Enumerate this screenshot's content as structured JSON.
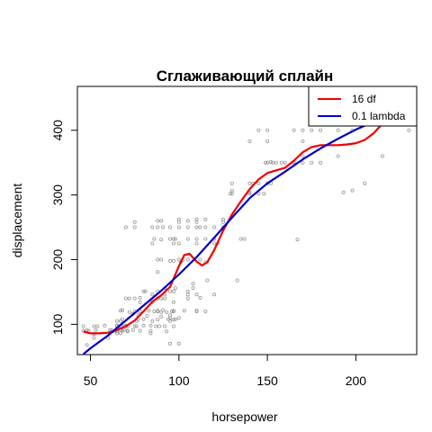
{
  "chart_data": {
    "type": "scatter",
    "title": "Сглаживающий сплайн",
    "xlabel": "horsepower",
    "ylabel": "displacement",
    "xlim": [
      42.6,
      234.4
    ],
    "ylim": [
      53.2,
      467.8
    ],
    "xticks": [
      50,
      100,
      150,
      200
    ],
    "yticks": [
      100,
      200,
      300,
      400
    ],
    "grid": false,
    "legend": {
      "position": "top-right",
      "entries": [
        {
          "label": "16 df",
          "color": "#ee0000"
        },
        {
          "label": "0.1 lambda",
          "color": "#0000cc"
        }
      ]
    },
    "point_color": "#999999",
    "points": [
      [
        46,
        97
      ],
      [
        46,
        90
      ],
      [
        48,
        68
      ],
      [
        48,
        91
      ],
      [
        49,
        90
      ],
      [
        52,
        85
      ],
      [
        52,
        79
      ],
      [
        52,
        97
      ],
      [
        53,
        91
      ],
      [
        54,
        97
      ],
      [
        58,
        98
      ],
      [
        60,
        79
      ],
      [
        61,
        91
      ],
      [
        62,
        91
      ],
      [
        63,
        89
      ],
      [
        65,
        86
      ],
      [
        65,
        98
      ],
      [
        65,
        97
      ],
      [
        65,
        105
      ],
      [
        65,
        89
      ],
      [
        66,
        97
      ],
      [
        67,
        91
      ],
      [
        67,
        97
      ],
      [
        67,
        105
      ],
      [
        67,
        121
      ],
      [
        67,
        86
      ],
      [
        68,
        90
      ],
      [
        68,
        108
      ],
      [
        68,
        122
      ],
      [
        69,
        97
      ],
      [
        69,
        91
      ],
      [
        70,
        97
      ],
      [
        70,
        98
      ],
      [
        70,
        140
      ],
      [
        70,
        250
      ],
      [
        71,
        90
      ],
      [
        71,
        97
      ],
      [
        71,
        89
      ],
      [
        72,
        119
      ],
      [
        72,
        140
      ],
      [
        74,
        116
      ],
      [
        74,
        91
      ],
      [
        75,
        97
      ],
      [
        75,
        140
      ],
      [
        75,
        258
      ],
      [
        75,
        250
      ],
      [
        75,
        120
      ],
      [
        76,
        97
      ],
      [
        76,
        105
      ],
      [
        77,
        108
      ],
      [
        77,
        114
      ],
      [
        78,
        90
      ],
      [
        78,
        120
      ],
      [
        78,
        134
      ],
      [
        78,
        141
      ],
      [
        80,
        151
      ],
      [
        80,
        108
      ],
      [
        80,
        98
      ],
      [
        81,
        151
      ],
      [
        82,
        113
      ],
      [
        83,
        121
      ],
      [
        84,
        98
      ],
      [
        84,
        90
      ],
      [
        84,
        86
      ],
      [
        85,
        134
      ],
      [
        85,
        105
      ],
      [
        85,
        146
      ],
      [
        85,
        250
      ],
      [
        85,
        225
      ],
      [
        86,
        120
      ],
      [
        86,
        232
      ],
      [
        87,
        97
      ],
      [
        88,
        140
      ],
      [
        88,
        107
      ],
      [
        88,
        120
      ],
      [
        88,
        151
      ],
      [
        88,
        121
      ],
      [
        88,
        250
      ],
      [
        88,
        200
      ],
      [
        88,
        260
      ],
      [
        88,
        181
      ],
      [
        89,
        97
      ],
      [
        90,
        119
      ],
      [
        90,
        140
      ],
      [
        90,
        112
      ],
      [
        90,
        200
      ],
      [
        90,
        231
      ],
      [
        90,
        260
      ],
      [
        91,
        122
      ],
      [
        91,
        250
      ],
      [
        92,
        156
      ],
      [
        92,
        146
      ],
      [
        92,
        97
      ],
      [
        92,
        140
      ],
      [
        93,
        119
      ],
      [
        93,
        89
      ],
      [
        94,
        108
      ],
      [
        95,
        70
      ],
      [
        95,
        151
      ],
      [
        95,
        105
      ],
      [
        95,
        114
      ],
      [
        95,
        110
      ],
      [
        95,
        250
      ],
      [
        95,
        198
      ],
      [
        95,
        232
      ],
      [
        96,
        120
      ],
      [
        97,
        151
      ],
      [
        97,
        121
      ],
      [
        97,
        107
      ],
      [
        97,
        120
      ],
      [
        97,
        134
      ],
      [
        97,
        97
      ],
      [
        97,
        198
      ],
      [
        97,
        225
      ],
      [
        97,
        232
      ],
      [
        98,
        156
      ],
      [
        98,
        108
      ],
      [
        98,
        232
      ],
      [
        100,
        70
      ],
      [
        100,
        110
      ],
      [
        100,
        200
      ],
      [
        100,
        225
      ],
      [
        100,
        250
      ],
      [
        100,
        258
      ],
      [
        100,
        262
      ],
      [
        101,
        196
      ],
      [
        102,
        199
      ],
      [
        103,
        121
      ],
      [
        105,
        140
      ],
      [
        105,
        151
      ],
      [
        105,
        146
      ],
      [
        105,
        232
      ],
      [
        105,
        250
      ],
      [
        105,
        200
      ],
      [
        105,
        260
      ],
      [
        108,
        156
      ],
      [
        108,
        163
      ],
      [
        110,
        121
      ],
      [
        110,
        120
      ],
      [
        110,
        146
      ],
      [
        110,
        225
      ],
      [
        110,
        232
      ],
      [
        110,
        250
      ],
      [
        110,
        258
      ],
      [
        110,
        262
      ],
      [
        112,
        141
      ],
      [
        112,
        200
      ],
      [
        112,
        250
      ],
      [
        115,
        120
      ],
      [
        115,
        196
      ],
      [
        115,
        232
      ],
      [
        115,
        250
      ],
      [
        115,
        262
      ],
      [
        116,
        168
      ],
      [
        120,
        146
      ],
      [
        120,
        225
      ],
      [
        120,
        232
      ],
      [
        120,
        250
      ],
      [
        122,
        225
      ],
      [
        125,
        258
      ],
      [
        125,
        250
      ],
      [
        125,
        262
      ],
      [
        129,
        302
      ],
      [
        130,
        302
      ],
      [
        130,
        318
      ],
      [
        130,
        307
      ],
      [
        133,
        168
      ],
      [
        135,
        232
      ],
      [
        137,
        232
      ],
      [
        140,
        302
      ],
      [
        140,
        304
      ],
      [
        140,
        318
      ],
      [
        140,
        383
      ],
      [
        142,
        318
      ],
      [
        145,
        318
      ],
      [
        145,
        302
      ],
      [
        145,
        400
      ],
      [
        148,
        302
      ],
      [
        149,
        350
      ],
      [
        150,
        318
      ],
      [
        150,
        400
      ],
      [
        150,
        383
      ],
      [
        150,
        350
      ],
      [
        152,
        318
      ],
      [
        152,
        351
      ],
      [
        153,
        350
      ],
      [
        155,
        350
      ],
      [
        158,
        350
      ],
      [
        160,
        350
      ],
      [
        165,
        400
      ],
      [
        165,
        351
      ],
      [
        165,
        350
      ],
      [
        170,
        400
      ],
      [
        170,
        383
      ],
      [
        170,
        350
      ],
      [
        170,
        360
      ],
      [
        175,
        400
      ],
      [
        175,
        350
      ],
      [
        180,
        350
      ],
      [
        180,
        400
      ],
      [
        190,
        400
      ],
      [
        190,
        360
      ],
      [
        193,
        304
      ],
      [
        198,
        400
      ],
      [
        208,
        429
      ],
      [
        210,
        455
      ],
      [
        215,
        455
      ],
      [
        220,
        440
      ],
      [
        225,
        455
      ],
      [
        230,
        400
      ],
      [
        167,
        231
      ],
      [
        198,
        307
      ],
      [
        205,
        318
      ],
      [
        215,
        360
      ]
    ],
    "series": [
      {
        "name": "16 df",
        "color": "#ee0000",
        "x": [
          46,
          50,
          55,
          60,
          65,
          70,
          75,
          80,
          85,
          90,
          95,
          100,
          103,
          106,
          110,
          113,
          116,
          120,
          125,
          130,
          135,
          140,
          145,
          150,
          155,
          160,
          165,
          170,
          175,
          180,
          185,
          190,
          195,
          200,
          205,
          210,
          215,
          220,
          225,
          230
        ],
        "y": [
          89,
          86,
          86,
          87,
          91,
          97,
          106,
          120,
          135,
          145,
          158,
          190,
          207,
          209,
          197,
          191,
          196,
          215,
          245,
          270,
          290,
          309,
          324,
          334,
          338,
          342,
          353,
          366,
          374,
          377,
          377,
          377,
          378,
          380,
          385,
          395,
          410,
          430,
          448,
          460
        ]
      },
      {
        "name": "0.1 lambda",
        "color": "#0000cc",
        "x": [
          46,
          50,
          60,
          70,
          80,
          90,
          100,
          110,
          120,
          130,
          140,
          150,
          160,
          170,
          180,
          190,
          200,
          210,
          220,
          230
        ],
        "y": [
          54,
          63,
          83,
          106,
          129,
          152,
          177,
          204,
          234,
          265,
          295,
          318,
          336,
          355,
          372,
          387,
          401,
          413,
          425,
          436
        ]
      }
    ]
  }
}
